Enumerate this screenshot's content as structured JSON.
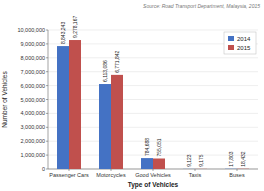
{
  "chart_data": {
    "type": "bar",
    "xlabel": "Type of Vehicles",
    "ylabel": "Number of Vehicles",
    "annotations": [
      "Source: Road Transport Department, Malaysia, 2015"
    ],
    "categories": [
      "Passenger Cars",
      "Motorcycles",
      "Good Vehicles",
      "Taxis",
      "Buses"
    ],
    "series": [
      {
        "name": "2014",
        "color": "#4472C4",
        "values": [
          8843243,
          6113086,
          784688,
          9123,
          17803
        ],
        "value_labels": [
          "8,843,243",
          "6,113,086",
          "784,688",
          "9,123",
          "17,803"
        ]
      },
      {
        "name": "2015",
        "color": "#C0504D",
        "values": [
          9278167,
          6771842,
          755051,
          9175,
          18432
        ],
        "value_labels": [
          "9,278,167",
          "6,771,842",
          "755,051",
          "9,175",
          "18,432"
        ]
      }
    ],
    "ylim": [
      0,
      10000000
    ],
    "yticks": [
      0,
      {
        "value": 1000000,
        "label": "1,000,000"
      },
      {
        "value": 2000000,
        "label": "2,000,000"
      },
      {
        "value": 3000000,
        "label": "3,000,000"
      },
      {
        "value": 4000000,
        "label": "4,000,000"
      },
      {
        "value": 5000000,
        "label": "5,000,000"
      },
      {
        "value": 6000000,
        "label": "6,000,000"
      },
      {
        "value": 7000000,
        "label": "7,000,000"
      },
      {
        "value": 8000000,
        "label": "8,000,000"
      },
      {
        "value": 9000000,
        "label": "9,000,000"
      },
      {
        "value": 10000000,
        "label": "10,000,000"
      }
    ],
    "grid": true,
    "legend": "upper right",
    "data_labels": true
  }
}
